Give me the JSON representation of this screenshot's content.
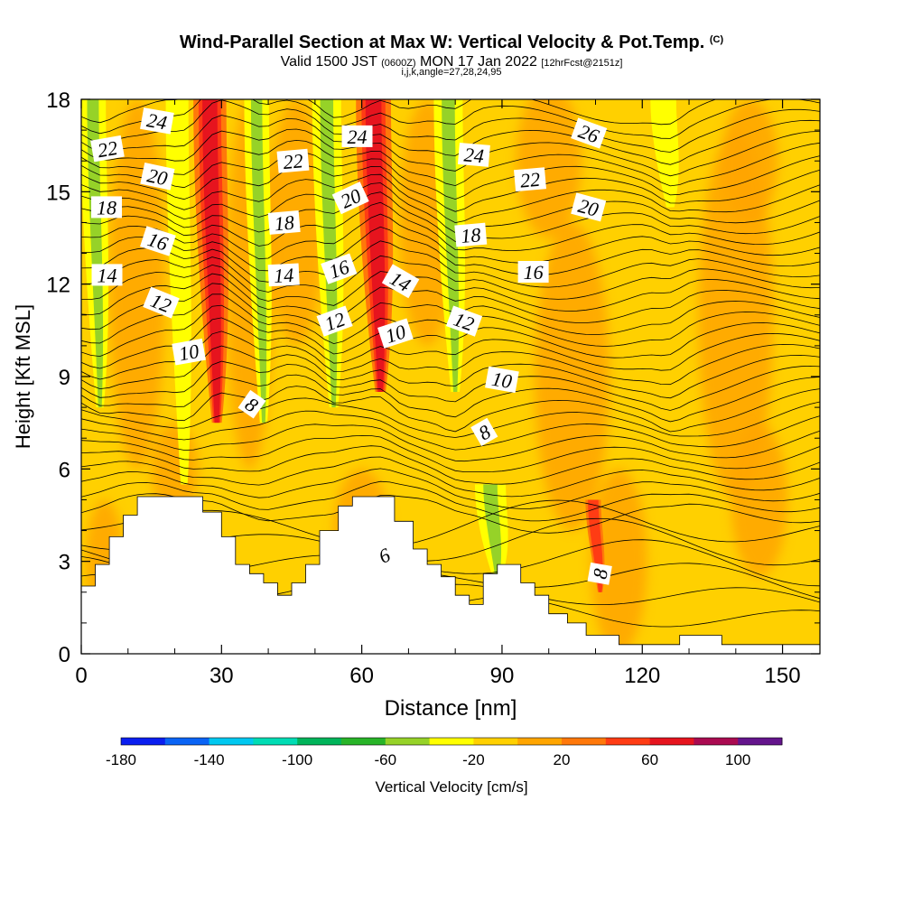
{
  "header": {
    "title": "Wind-Parallel Section at Max W: Vertical Velocity & Pot.Temp.",
    "title_mark": "(C)",
    "valid_prefix": "Valid 1500 JST",
    "valid_utc": "(0600Z)",
    "valid_date": "MON 17 Jan 2022",
    "forecast": "[12hrFcst@2151z]",
    "ijk_line": "i,j,k,angle=27,28,24,95"
  },
  "chart_data": {
    "type": "heatmap",
    "xlabel": "Distance [nm]",
    "ylabel": "Height [Kft MSL]",
    "xlim": [
      0,
      158
    ],
    "ylim": [
      0,
      18
    ],
    "xticks": [
      0,
      30,
      60,
      90,
      120,
      150
    ],
    "yticks": [
      0,
      3,
      6,
      9,
      12,
      15,
      18
    ],
    "background_fill": "#FFD000",
    "colorbar": {
      "label": "Vertical Velocity [cm/s]",
      "levels": [
        -180,
        -160,
        -140,
        -120,
        -100,
        -80,
        -60,
        -40,
        -20,
        0,
        20,
        40,
        60,
        80,
        100,
        120
      ],
      "tick_labels": [
        -180,
        -140,
        -100,
        -60,
        -20,
        20,
        60,
        100
      ],
      "colors": [
        "#0A1EF0",
        "#0A64F5",
        "#00C8F0",
        "#00DCB4",
        "#00B45A",
        "#28B428",
        "#96D228",
        "#FFFF00",
        "#FFD000",
        "#FFA500",
        "#FF780A",
        "#FF3C14",
        "#E6141E",
        "#AA0A50",
        "#64148C"
      ]
    },
    "velocity_bands": [
      {
        "x": 4,
        "y0": 8,
        "y1": 18,
        "w": 2.5,
        "value": -50
      },
      {
        "x": 22,
        "y0": 5.5,
        "y1": 18,
        "w": 2.2,
        "value": -40
      },
      {
        "x": 29,
        "y0": 7.5,
        "y1": 18,
        "w": 3.2,
        "value": 65
      },
      {
        "x": 39,
        "y0": 7.5,
        "y1": 18,
        "w": 2.4,
        "value": -50
      },
      {
        "x": 54,
        "y0": 8,
        "y1": 18,
        "w": 2.8,
        "value": -50
      },
      {
        "x": 64,
        "y0": 8.5,
        "y1": 18,
        "w": 3.4,
        "value": 65
      },
      {
        "x": 80,
        "y0": 8.5,
        "y1": 18,
        "w": 2.8,
        "value": -50
      },
      {
        "x": 89,
        "y0": 2.5,
        "y1": 5.5,
        "w": 3,
        "value": -45
      },
      {
        "x": 111,
        "y0": 2,
        "y1": 5,
        "w": 1.5,
        "value": 55
      },
      {
        "x": 126,
        "y0": 14.5,
        "y1": 18,
        "w": 2.5,
        "value": -40
      }
    ],
    "terrain": [
      [
        0,
        2.2
      ],
      [
        3,
        2.2
      ],
      [
        3,
        2.9
      ],
      [
        6,
        2.9
      ],
      [
        6,
        3.8
      ],
      [
        9,
        3.8
      ],
      [
        9,
        4.5
      ],
      [
        12,
        4.5
      ],
      [
        12,
        5.1
      ],
      [
        26,
        5.1
      ],
      [
        26,
        4.6
      ],
      [
        30,
        4.6
      ],
      [
        30,
        3.8
      ],
      [
        33,
        3.8
      ],
      [
        33,
        2.9
      ],
      [
        36,
        2.9
      ],
      [
        36,
        2.6
      ],
      [
        39,
        2.6
      ],
      [
        39,
        2.3
      ],
      [
        42,
        2.3
      ],
      [
        42,
        1.9
      ],
      [
        45,
        1.9
      ],
      [
        45,
        2.3
      ],
      [
        48,
        2.3
      ],
      [
        48,
        2.9
      ],
      [
        51,
        2.9
      ],
      [
        51,
        4.0
      ],
      [
        55,
        4.0
      ],
      [
        55,
        4.8
      ],
      [
        58,
        4.8
      ],
      [
        58,
        5.1
      ],
      [
        67,
        5.1
      ],
      [
        67,
        4.3
      ],
      [
        71,
        4.3
      ],
      [
        71,
        3.4
      ],
      [
        74,
        3.4
      ],
      [
        74,
        2.9
      ],
      [
        77,
        2.9
      ],
      [
        77,
        2.5
      ],
      [
        80,
        2.5
      ],
      [
        80,
        1.9
      ],
      [
        83,
        1.9
      ],
      [
        83,
        1.6
      ],
      [
        86,
        1.6
      ],
      [
        86,
        2.6
      ],
      [
        89,
        2.6
      ],
      [
        89,
        2.9
      ],
      [
        94,
        2.9
      ],
      [
        94,
        2.3
      ],
      [
        97,
        2.3
      ],
      [
        97,
        1.9
      ],
      [
        100,
        1.9
      ],
      [
        100,
        1.3
      ],
      [
        104,
        1.3
      ],
      [
        104,
        1.0
      ],
      [
        108,
        1.0
      ],
      [
        108,
        0.6
      ],
      [
        115,
        0.6
      ],
      [
        115,
        0.3
      ],
      [
        128,
        0.3
      ],
      [
        128,
        0.6
      ],
      [
        137,
        0.6
      ],
      [
        137,
        0.3
      ],
      [
        158,
        0.3
      ]
    ],
    "isentropes": {
      "label": "Potential temperature contours",
      "labels": [
        {
          "text": "22",
          "x": 5.6,
          "y": 16.4,
          "angle": -10
        },
        {
          "text": "24",
          "x": 16.2,
          "y": 17.3,
          "angle": 10
        },
        {
          "text": "20",
          "x": 16.3,
          "y": 15.5,
          "angle": 12
        },
        {
          "text": "18",
          "x": 5.4,
          "y": 14.5,
          "angle": 0
        },
        {
          "text": "16",
          "x": 16.4,
          "y": 13.4,
          "angle": 18
        },
        {
          "text": "14",
          "x": 5.5,
          "y": 12.3,
          "angle": 0
        },
        {
          "text": "12",
          "x": 17.1,
          "y": 11.4,
          "angle": 22
        },
        {
          "text": "10",
          "x": 23.0,
          "y": 9.8,
          "angle": -10
        },
        {
          "text": "8",
          "x": 36.5,
          "y": 8.1,
          "angle": 35
        },
        {
          "text": "22",
          "x": 45.3,
          "y": 16.0,
          "angle": -5
        },
        {
          "text": "18",
          "x": 43.4,
          "y": 14.0,
          "angle": -5
        },
        {
          "text": "14",
          "x": 43.3,
          "y": 12.3,
          "angle": -3
        },
        {
          "text": "20",
          "x": 57.6,
          "y": 14.8,
          "angle": -25
        },
        {
          "text": "16",
          "x": 55.1,
          "y": 12.5,
          "angle": -20
        },
        {
          "text": "12",
          "x": 54.2,
          "y": 10.8,
          "angle": -20
        },
        {
          "text": "24",
          "x": 59.0,
          "y": 16.8,
          "angle": 0
        },
        {
          "text": "14",
          "x": 68.3,
          "y": 12.1,
          "angle": 30
        },
        {
          "text": "10",
          "x": 67.2,
          "y": 10.4,
          "angle": -18
        },
        {
          "text": "6",
          "x": 64.8,
          "y": 3.2,
          "angle": -25
        },
        {
          "text": "24",
          "x": 84.0,
          "y": 16.2,
          "angle": 5
        },
        {
          "text": "18",
          "x": 83.3,
          "y": 13.6,
          "angle": -5
        },
        {
          "text": "12",
          "x": 81.9,
          "y": 10.8,
          "angle": 20
        },
        {
          "text": "10",
          "x": 90.0,
          "y": 8.9,
          "angle": 10
        },
        {
          "text": "8",
          "x": 86.2,
          "y": 7.2,
          "angle": -30
        },
        {
          "text": "22",
          "x": 96.0,
          "y": 15.4,
          "angle": -5
        },
        {
          "text": "16",
          "x": 96.7,
          "y": 12.4,
          "angle": 0
        },
        {
          "text": "26",
          "x": 108.6,
          "y": 16.9,
          "angle": 20
        },
        {
          "text": "20",
          "x": 108.5,
          "y": 14.5,
          "angle": 15
        },
        {
          "text": "8",
          "x": 110.9,
          "y": 2.6,
          "angle": -80
        }
      ]
    }
  }
}
